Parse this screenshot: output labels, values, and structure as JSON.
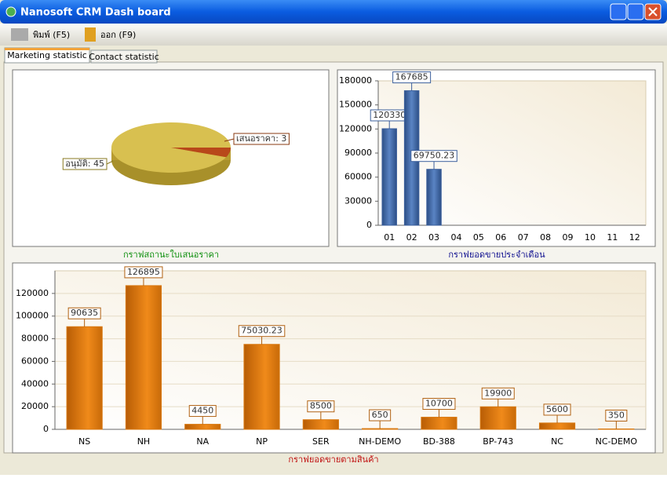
{
  "window": {
    "title": "Nanosoft CRM Dash board"
  },
  "toolbar": {
    "buttons": [
      "พิมพ์ (F5)",
      "ออก (F9)"
    ]
  },
  "tabs": [
    "Marketing statistic",
    "Contact statistic"
  ],
  "chart_data": [
    {
      "type": "pie",
      "title": "กราฟสถานะใบเสนอราคา",
      "values": [
        45,
        3
      ],
      "value_labels": [
        "อนุมัติ: 45",
        "เสนอราคา: 3"
      ],
      "colors": [
        "#d8c050",
        "#b8481a"
      ]
    },
    {
      "type": "bar",
      "title": "กราฟยอดขายประจำเดือน",
      "categories": [
        "01",
        "02",
        "03",
        "04",
        "05",
        "06",
        "07",
        "08",
        "09",
        "10",
        "11",
        "12"
      ],
      "values": [
        120330,
        167685,
        69750.23,
        null,
        null,
        null,
        null,
        null,
        null,
        null,
        null,
        null
      ],
      "color": "#3b5f9c",
      "ylim": [
        0,
        180000
      ],
      "yticks": [
        0,
        30000,
        60000,
        90000,
        120000,
        150000,
        180000
      ],
      "grid": false
    },
    {
      "type": "bar",
      "title": "กราฟยอดขายตามสินค้า",
      "categories": [
        "NS",
        "NH",
        "NA",
        "NP",
        "SER",
        "NH-DEMO",
        "BD-388",
        "BP-743",
        "NC",
        "NC-DEMO"
      ],
      "values": [
        90635,
        126895,
        4450,
        75030.23,
        8500,
        650,
        10700,
        19900,
        5600,
        350
      ],
      "color": "#d9780f",
      "ylim": [
        0,
        140000
      ],
      "yticks": [
        0,
        20000,
        40000,
        60000,
        80000,
        100000,
        120000
      ],
      "grid": true
    }
  ]
}
